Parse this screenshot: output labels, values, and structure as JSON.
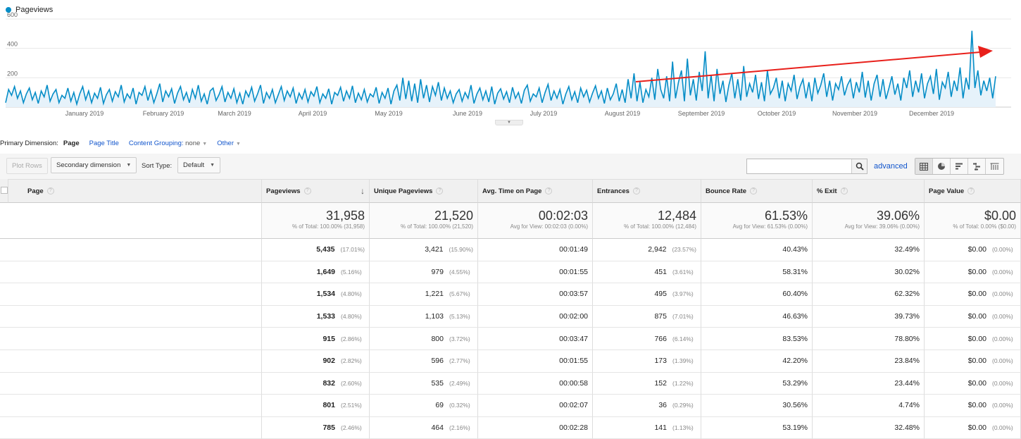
{
  "chart": {
    "legend_label": "Pageviews",
    "series_color": "#058dc7",
    "trend_arrow_color": "#e8201b",
    "y_ticks": [
      "600",
      "400",
      "200"
    ],
    "x_ticks": [
      "January 2019",
      "February 2019",
      "March 2019",
      "April 2019",
      "May 2019",
      "June 2019",
      "July 2019",
      "August 2019",
      "September 2019",
      "October 2019",
      "November 2019",
      "December 2019"
    ]
  },
  "chart_data": {
    "type": "area",
    "title": "",
    "xlabel": "",
    "ylabel": "",
    "ylim": [
      0,
      600
    ],
    "grid": true,
    "legend_position": "top-left",
    "series": [
      {
        "name": "Pageviews",
        "values": [
          30,
          120,
          80,
          140,
          60,
          110,
          30,
          90,
          130,
          50,
          100,
          25,
          110,
          70,
          150,
          40,
          90,
          120,
          30,
          80,
          60,
          130,
          40,
          100,
          20,
          90,
          140,
          50,
          110,
          30,
          95,
          60,
          135,
          25,
          85,
          120,
          40,
          105,
          70,
          150,
          35,
          90,
          60,
          130,
          20,
          100,
          80,
          140,
          45,
          115,
          30,
          90,
          160,
          35,
          110,
          70,
          125,
          25,
          95,
          140,
          50,
          100,
          30,
          120,
          60,
          150,
          40,
          90,
          20,
          110,
          130,
          45,
          85,
          140,
          35,
          100,
          60,
          125,
          30,
          95,
          20,
          110,
          70,
          135,
          40,
          90,
          150,
          25,
          100,
          60,
          120,
          30,
          85,
          140,
          45,
          110,
          70,
          130,
          25,
          95,
          55,
          120,
          35,
          105,
          75,
          140,
          30,
          90,
          60,
          125,
          20,
          100,
          80,
          135,
          40,
          110,
          60,
          145,
          30,
          95,
          50,
          120,
          35,
          90,
          70,
          135,
          25,
          100,
          60,
          130,
          20,
          110,
          150,
          45,
          200,
          55,
          180,
          40,
          160,
          30,
          190,
          60,
          150,
          35,
          140,
          80,
          170,
          45,
          130,
          60,
          110,
          30,
          90,
          120,
          40,
          100,
          60,
          150,
          25,
          90,
          130,
          50,
          110,
          35,
          140,
          20,
          95,
          125,
          55,
          105,
          30,
          135,
          60,
          100,
          25,
          115,
          150,
          40,
          90,
          70,
          130,
          30,
          100,
          155,
          45,
          110,
          60,
          120,
          20,
          90,
          140,
          50,
          105,
          30,
          130,
          70,
          115,
          35,
          95,
          145,
          60,
          110,
          25,
          130,
          50,
          90,
          160,
          40,
          120,
          30,
          190,
          60,
          230,
          40,
          170,
          30,
          120,
          70,
          200,
          50,
          260,
          120,
          60,
          210,
          40,
          310,
          60,
          170,
          250,
          40,
          330,
          80,
          190,
          45,
          240,
          110,
          380,
          60,
          220,
          40,
          260,
          90,
          180,
          35,
          150,
          230,
          60,
          190,
          45,
          280,
          70,
          160,
          100,
          220,
          55,
          170,
          40,
          250,
          90,
          130,
          200,
          60,
          180,
          40,
          160,
          110,
          220,
          55,
          140,
          190,
          60,
          170,
          40,
          200,
          95,
          150,
          230,
          70,
          180,
          45,
          160,
          120,
          210,
          80,
          150,
          190,
          60,
          170,
          100,
          240,
          65,
          180,
          45,
          160,
          220,
          70,
          190,
          55,
          130,
          210,
          85,
          160,
          45,
          200,
          130,
          250,
          70,
          180,
          100,
          230,
          60,
          160,
          210,
          90,
          260,
          50,
          170,
          130,
          240,
          70,
          180,
          110,
          270,
          60,
          200,
          120,
          520,
          130,
          250,
          80,
          180,
          110,
          200,
          60,
          210
        ]
      }
    ]
  },
  "dimension_bar": {
    "label": "Primary Dimension:",
    "active": "Page",
    "page_title": "Page Title",
    "content_grouping_label": "Content Grouping:",
    "content_grouping_value": "none",
    "other": "Other"
  },
  "toolbar": {
    "plot_rows": "Plot Rows",
    "secondary_dimension": "Secondary dimension",
    "sort_type_label": "Sort Type:",
    "sort_type_value": "Default",
    "search_placeholder": "",
    "advanced": "advanced"
  },
  "table": {
    "headers": [
      "Page",
      "Pageviews",
      "Unique Pageviews",
      "Avg. Time on Page",
      "Entrances",
      "Bounce Rate",
      "% Exit",
      "Page Value"
    ],
    "totals": [
      {
        "value": "31,958",
        "sub": "% of Total: 100.00% (31,958)"
      },
      {
        "value": "21,520",
        "sub": "% of Total: 100.00% (21,520)"
      },
      {
        "value": "00:02:03",
        "sub": "Avg for View: 00:02:03 (0.00%)"
      },
      {
        "value": "12,484",
        "sub": "% of Total: 100.00% (12,484)"
      },
      {
        "value": "61.53%",
        "sub": "Avg for View: 61.53% (0.00%)"
      },
      {
        "value": "39.06%",
        "sub": "Avg for View: 39.06% (0.00%)"
      },
      {
        "value": "$0.00",
        "sub": "% of Total: 0.00% ($0.00)"
      }
    ],
    "rows": [
      {
        "pv": "5,435",
        "pv_pct": "(17.01%)",
        "upv": "3,421",
        "upv_pct": "(15.90%)",
        "time": "00:01:49",
        "ent": "2,942",
        "ent_pct": "(23.57%)",
        "bounce": "40.43%",
        "exit": "32.49%",
        "value": "$0.00",
        "value_pct": "(0.00%)"
      },
      {
        "pv": "1,649",
        "pv_pct": "(5.16%)",
        "upv": "979",
        "upv_pct": "(4.55%)",
        "time": "00:01:55",
        "ent": "451",
        "ent_pct": "(3.61%)",
        "bounce": "58.31%",
        "exit": "30.02%",
        "value": "$0.00",
        "value_pct": "(0.00%)"
      },
      {
        "pv": "1,534",
        "pv_pct": "(4.80%)",
        "upv": "1,221",
        "upv_pct": "(5.67%)",
        "time": "00:03:57",
        "ent": "495",
        "ent_pct": "(3.97%)",
        "bounce": "60.40%",
        "exit": "62.32%",
        "value": "$0.00",
        "value_pct": "(0.00%)"
      },
      {
        "pv": "1,533",
        "pv_pct": "(4.80%)",
        "upv": "1,103",
        "upv_pct": "(5.13%)",
        "time": "00:02:00",
        "ent": "875",
        "ent_pct": "(7.01%)",
        "bounce": "46.63%",
        "exit": "39.73%",
        "value": "$0.00",
        "value_pct": "(0.00%)"
      },
      {
        "pv": "915",
        "pv_pct": "(2.86%)",
        "upv": "800",
        "upv_pct": "(3.72%)",
        "time": "00:03:47",
        "ent": "766",
        "ent_pct": "(6.14%)",
        "bounce": "83.53%",
        "exit": "78.80%",
        "value": "$0.00",
        "value_pct": "(0.00%)"
      },
      {
        "pv": "902",
        "pv_pct": "(2.82%)",
        "upv": "596",
        "upv_pct": "(2.77%)",
        "time": "00:01:55",
        "ent": "173",
        "ent_pct": "(1.39%)",
        "bounce": "42.20%",
        "exit": "23.84%",
        "value": "$0.00",
        "value_pct": "(0.00%)"
      },
      {
        "pv": "832",
        "pv_pct": "(2.60%)",
        "upv": "535",
        "upv_pct": "(2.49%)",
        "time": "00:00:58",
        "ent": "152",
        "ent_pct": "(1.22%)",
        "bounce": "53.29%",
        "exit": "23.44%",
        "value": "$0.00",
        "value_pct": "(0.00%)"
      },
      {
        "pv": "801",
        "pv_pct": "(2.51%)",
        "upv": "69",
        "upv_pct": "(0.32%)",
        "time": "00:02:07",
        "ent": "36",
        "ent_pct": "(0.29%)",
        "bounce": "30.56%",
        "exit": "4.74%",
        "value": "$0.00",
        "value_pct": "(0.00%)"
      },
      {
        "pv": "785",
        "pv_pct": "(2.46%)",
        "upv": "464",
        "upv_pct": "(2.16%)",
        "time": "00:02:28",
        "ent": "141",
        "ent_pct": "(1.13%)",
        "bounce": "53.19%",
        "exit": "32.48%",
        "value": "$0.00",
        "value_pct": "(0.00%)"
      }
    ]
  }
}
